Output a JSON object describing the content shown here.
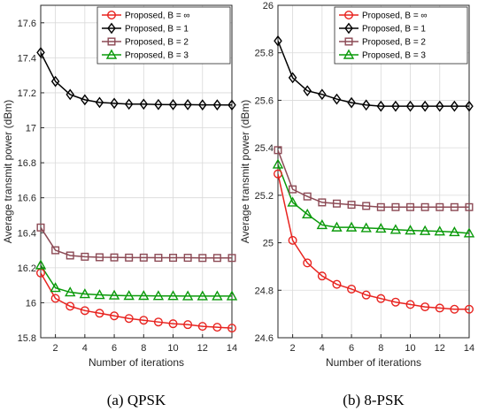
{
  "chart_data": [
    {
      "type": "line",
      "caption": "(a) QPSK",
      "xlabel": "Number of iterations",
      "ylabel": "Average transmit power (dBm)",
      "xlim": [
        1,
        14
      ],
      "ylim": [
        15.8,
        17.7
      ],
      "xticks": [
        2,
        4,
        6,
        8,
        10,
        12,
        14
      ],
      "yticks": [
        15.8,
        16,
        16.2,
        16.4,
        16.6,
        16.8,
        17,
        17.2,
        17.4,
        17.6
      ],
      "grid": true,
      "legend_position": "top-right",
      "x": [
        1,
        2,
        3,
        4,
        5,
        6,
        7,
        8,
        9,
        10,
        11,
        12,
        13,
        14
      ],
      "series": [
        {
          "name": "Proposed, B = ∞",
          "color": "#e8231f",
          "marker": "circle",
          "values": [
            16.17,
            16.025,
            15.98,
            15.955,
            15.94,
            15.925,
            15.91,
            15.9,
            15.89,
            15.88,
            15.875,
            15.865,
            15.86,
            15.855
          ]
        },
        {
          "name": "Proposed, B = 1",
          "color": "#000000",
          "marker": "diamond",
          "values": [
            17.43,
            17.265,
            17.19,
            17.16,
            17.145,
            17.14,
            17.135,
            17.135,
            17.133,
            17.132,
            17.132,
            17.131,
            17.131,
            17.13
          ]
        },
        {
          "name": "Proposed, B = 2",
          "color": "#8c4a55",
          "marker": "square",
          "values": [
            16.43,
            16.3,
            16.27,
            16.263,
            16.26,
            16.259,
            16.258,
            16.258,
            16.257,
            16.257,
            16.257,
            16.256,
            16.256,
            16.256
          ]
        },
        {
          "name": "Proposed, B = 3",
          "color": "#0a9a0a",
          "marker": "triangle",
          "values": [
            16.215,
            16.085,
            16.06,
            16.05,
            16.045,
            16.042,
            16.04,
            16.04,
            16.039,
            16.039,
            16.038,
            16.038,
            16.038,
            16.038
          ]
        }
      ]
    },
    {
      "type": "line",
      "caption": "(b) 8-PSK",
      "xlabel": "Number of iterations",
      "ylabel": "Average transmit power (dBm)",
      "xlim": [
        1,
        14
      ],
      "ylim": [
        24.6,
        26
      ],
      "xticks": [
        2,
        4,
        6,
        8,
        10,
        12,
        14
      ],
      "yticks": [
        24.6,
        24.8,
        25,
        25.2,
        25.4,
        25.6,
        25.8,
        26
      ],
      "grid": true,
      "legend_position": "top-right",
      "x": [
        1,
        2,
        3,
        4,
        5,
        6,
        7,
        8,
        9,
        10,
        11,
        12,
        13,
        14
      ],
      "series": [
        {
          "name": "Proposed, B = ∞",
          "color": "#e8231f",
          "marker": "circle",
          "values": [
            25.29,
            25.01,
            24.915,
            24.86,
            24.825,
            24.805,
            24.78,
            24.765,
            24.75,
            24.74,
            24.73,
            24.725,
            24.72,
            24.72
          ]
        },
        {
          "name": "Proposed, B = 1",
          "color": "#000000",
          "marker": "diamond",
          "values": [
            25.85,
            25.695,
            25.64,
            25.625,
            25.605,
            25.59,
            25.58,
            25.575,
            25.575,
            25.575,
            25.575,
            25.575,
            25.575,
            25.575
          ]
        },
        {
          "name": "Proposed, B = 2",
          "color": "#8c4a55",
          "marker": "square",
          "values": [
            25.39,
            25.225,
            25.195,
            25.17,
            25.165,
            25.16,
            25.155,
            25.15,
            25.15,
            25.15,
            25.15,
            25.15,
            25.15,
            25.15
          ]
        },
        {
          "name": "Proposed, B = 3",
          "color": "#0a9a0a",
          "marker": "triangle",
          "values": [
            25.33,
            25.17,
            25.12,
            25.075,
            25.065,
            25.065,
            25.062,
            25.06,
            25.055,
            25.052,
            25.05,
            25.048,
            25.045,
            25.04
          ]
        }
      ]
    }
  ]
}
